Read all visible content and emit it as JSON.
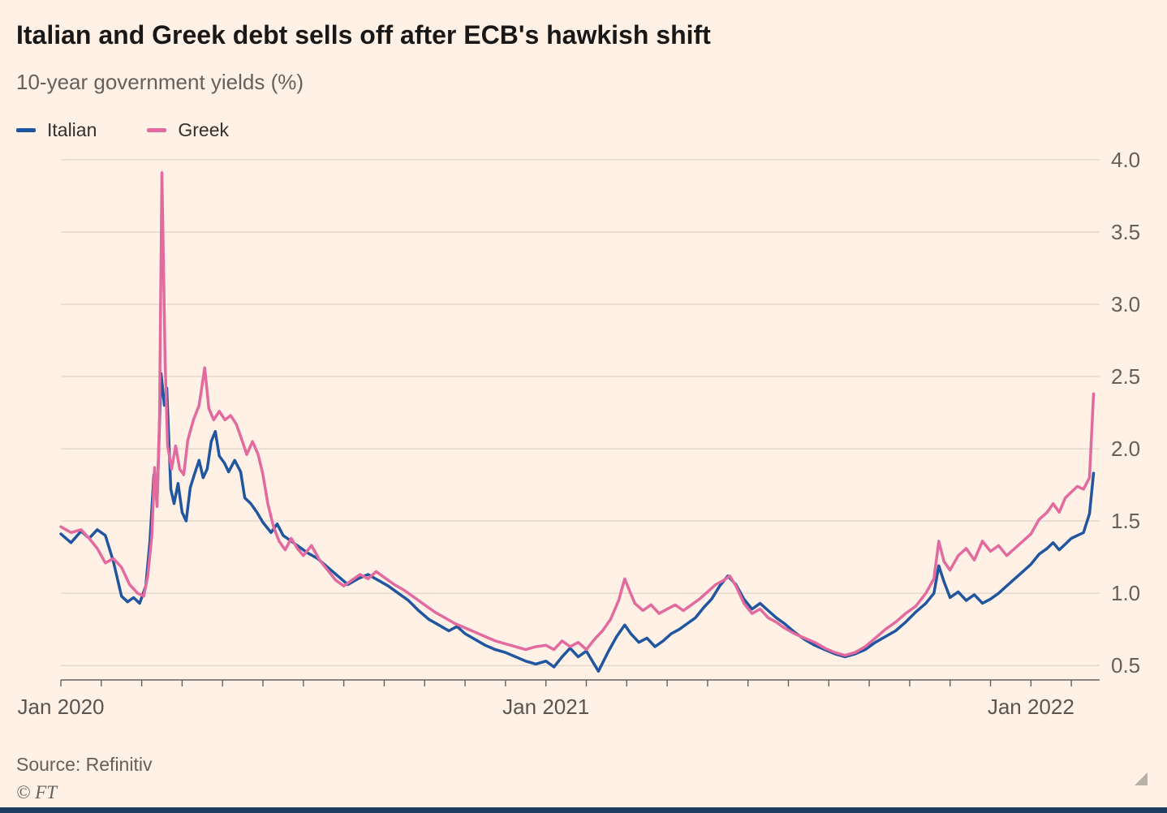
{
  "page": {
    "title": "Italian and Greek debt sells off after ECB's hawkish shift",
    "subtitle": "10-year government yields (%)",
    "source": "Source: Refinitiv",
    "copyright": "© FT"
  },
  "colors": {
    "background": "#FFF1E5",
    "title_text": "#1A1817",
    "muted_text": "#66605C",
    "axis": "#66605C",
    "grid": "#D8CCC0",
    "italian_line": "#20569F",
    "greek_line": "#E26A9F",
    "bottom_bar": "#1E3F5F",
    "corner_handle": "#B9B0A7"
  },
  "chart_data": {
    "type": "line",
    "title": "Italian and Greek debt sells off after ECB's hawkish shift",
    "subtitle": "10-year government yields (%)",
    "xlabel": "",
    "ylabel": "10-year government yield (%)",
    "grid": "horizontal",
    "legend_position": "top-left",
    "x_unit": "months since Jan 2020",
    "x_range": [
      0,
      25.7
    ],
    "y_range": [
      0.4,
      4.05
    ],
    "y_ticks": [
      0.5,
      1.0,
      1.5,
      2.0,
      2.5,
      3.0,
      3.5,
      4.0
    ],
    "x_ticks": [
      {
        "label": "Jan 2020",
        "month": 0
      },
      {
        "label": "Jan 2021",
        "month": 12
      },
      {
        "label": "Jan 2022",
        "month": 24
      }
    ],
    "minor_tick_interval_months": 1,
    "series": [
      {
        "name": "Italian",
        "color": "#20569F",
        "points": [
          [
            0,
            1.41
          ],
          [
            0.25,
            1.35
          ],
          [
            0.5,
            1.43
          ],
          [
            0.7,
            1.38
          ],
          [
            0.9,
            1.44
          ],
          [
            1.1,
            1.4
          ],
          [
            1.3,
            1.22
          ],
          [
            1.5,
            0.98
          ],
          [
            1.65,
            0.94
          ],
          [
            1.8,
            0.97
          ],
          [
            1.95,
            0.93
          ],
          [
            2.1,
            1.05
          ],
          [
            2.2,
            1.35
          ],
          [
            2.3,
            1.82
          ],
          [
            2.38,
            1.62
          ],
          [
            2.48,
            2.52
          ],
          [
            2.56,
            2.3
          ],
          [
            2.62,
            2.42
          ],
          [
            2.72,
            1.72
          ],
          [
            2.8,
            1.62
          ],
          [
            2.9,
            1.76
          ],
          [
            3.0,
            1.56
          ],
          [
            3.1,
            1.5
          ],
          [
            3.2,
            1.73
          ],
          [
            3.3,
            1.82
          ],
          [
            3.42,
            1.92
          ],
          [
            3.52,
            1.8
          ],
          [
            3.62,
            1.86
          ],
          [
            3.72,
            2.05
          ],
          [
            3.82,
            2.12
          ],
          [
            3.92,
            1.95
          ],
          [
            4.05,
            1.9
          ],
          [
            4.15,
            1.84
          ],
          [
            4.3,
            1.92
          ],
          [
            4.45,
            1.84
          ],
          [
            4.55,
            1.66
          ],
          [
            4.7,
            1.62
          ],
          [
            4.85,
            1.56
          ],
          [
            5.0,
            1.49
          ],
          [
            5.2,
            1.42
          ],
          [
            5.35,
            1.48
          ],
          [
            5.5,
            1.4
          ],
          [
            5.7,
            1.36
          ],
          [
            5.9,
            1.32
          ],
          [
            6.1,
            1.28
          ],
          [
            6.35,
            1.24
          ],
          [
            6.6,
            1.18
          ],
          [
            6.85,
            1.12
          ],
          [
            7.1,
            1.06
          ],
          [
            7.35,
            1.1
          ],
          [
            7.6,
            1.13
          ],
          [
            7.85,
            1.09
          ],
          [
            8.1,
            1.05
          ],
          [
            8.35,
            1.0
          ],
          [
            8.6,
            0.95
          ],
          [
            8.85,
            0.88
          ],
          [
            9.1,
            0.82
          ],
          [
            9.35,
            0.78
          ],
          [
            9.6,
            0.74
          ],
          [
            9.8,
            0.77
          ],
          [
            10.0,
            0.72
          ],
          [
            10.25,
            0.68
          ],
          [
            10.5,
            0.64
          ],
          [
            10.75,
            0.61
          ],
          [
            11.0,
            0.59
          ],
          [
            11.25,
            0.56
          ],
          [
            11.5,
            0.53
          ],
          [
            11.75,
            0.51
          ],
          [
            12.0,
            0.53
          ],
          [
            12.2,
            0.49
          ],
          [
            12.4,
            0.56
          ],
          [
            12.6,
            0.62
          ],
          [
            12.8,
            0.56
          ],
          [
            13.0,
            0.6
          ],
          [
            13.15,
            0.53
          ],
          [
            13.3,
            0.46
          ],
          [
            13.55,
            0.6
          ],
          [
            13.75,
            0.7
          ],
          [
            13.95,
            0.78
          ],
          [
            14.1,
            0.72
          ],
          [
            14.3,
            0.66
          ],
          [
            14.5,
            0.69
          ],
          [
            14.7,
            0.63
          ],
          [
            14.9,
            0.67
          ],
          [
            15.1,
            0.72
          ],
          [
            15.3,
            0.75
          ],
          [
            15.5,
            0.79
          ],
          [
            15.7,
            0.83
          ],
          [
            15.9,
            0.9
          ],
          [
            16.1,
            0.96
          ],
          [
            16.3,
            1.05
          ],
          [
            16.5,
            1.12
          ],
          [
            16.7,
            1.06
          ],
          [
            16.9,
            0.96
          ],
          [
            17.1,
            0.89
          ],
          [
            17.3,
            0.93
          ],
          [
            17.5,
            0.88
          ],
          [
            17.7,
            0.83
          ],
          [
            17.9,
            0.79
          ],
          [
            18.15,
            0.73
          ],
          [
            18.4,
            0.68
          ],
          [
            18.65,
            0.64
          ],
          [
            18.9,
            0.61
          ],
          [
            19.15,
            0.58
          ],
          [
            19.4,
            0.56
          ],
          [
            19.65,
            0.58
          ],
          [
            19.9,
            0.61
          ],
          [
            20.15,
            0.66
          ],
          [
            20.4,
            0.7
          ],
          [
            20.65,
            0.74
          ],
          [
            20.9,
            0.8
          ],
          [
            21.15,
            0.87
          ],
          [
            21.4,
            0.93
          ],
          [
            21.6,
            1.0
          ],
          [
            21.72,
            1.19
          ],
          [
            21.85,
            1.08
          ],
          [
            22.0,
            0.97
          ],
          [
            22.2,
            1.01
          ],
          [
            22.4,
            0.95
          ],
          [
            22.6,
            0.99
          ],
          [
            22.8,
            0.93
          ],
          [
            23.0,
            0.96
          ],
          [
            23.2,
            1.0
          ],
          [
            23.4,
            1.05
          ],
          [
            23.6,
            1.1
          ],
          [
            23.8,
            1.15
          ],
          [
            24.0,
            1.2
          ],
          [
            24.2,
            1.27
          ],
          [
            24.4,
            1.31
          ],
          [
            24.55,
            1.35
          ],
          [
            24.7,
            1.3
          ],
          [
            24.85,
            1.34
          ],
          [
            25.0,
            1.38
          ],
          [
            25.15,
            1.4
          ],
          [
            25.3,
            1.42
          ],
          [
            25.45,
            1.55
          ],
          [
            25.55,
            1.83
          ]
        ]
      },
      {
        "name": "Greek",
        "color": "#E26A9F",
        "points": [
          [
            0,
            1.46
          ],
          [
            0.25,
            1.42
          ],
          [
            0.5,
            1.44
          ],
          [
            0.7,
            1.38
          ],
          [
            0.9,
            1.31
          ],
          [
            1.1,
            1.21
          ],
          [
            1.3,
            1.24
          ],
          [
            1.5,
            1.18
          ],
          [
            1.7,
            1.06
          ],
          [
            1.9,
            1.0
          ],
          [
            2.05,
            0.98
          ],
          [
            2.15,
            1.12
          ],
          [
            2.25,
            1.4
          ],
          [
            2.32,
            1.87
          ],
          [
            2.38,
            1.6
          ],
          [
            2.44,
            2.2
          ],
          [
            2.5,
            3.91
          ],
          [
            2.58,
            2.6
          ],
          [
            2.64,
            2.02
          ],
          [
            2.74,
            1.86
          ],
          [
            2.84,
            2.02
          ],
          [
            2.94,
            1.86
          ],
          [
            3.04,
            1.82
          ],
          [
            3.14,
            2.06
          ],
          [
            3.28,
            2.2
          ],
          [
            3.42,
            2.3
          ],
          [
            3.56,
            2.56
          ],
          [
            3.66,
            2.28
          ],
          [
            3.78,
            2.2
          ],
          [
            3.92,
            2.26
          ],
          [
            4.06,
            2.2
          ],
          [
            4.2,
            2.23
          ],
          [
            4.34,
            2.17
          ],
          [
            4.48,
            2.06
          ],
          [
            4.6,
            1.96
          ],
          [
            4.74,
            2.05
          ],
          [
            4.88,
            1.96
          ],
          [
            5.0,
            1.82
          ],
          [
            5.12,
            1.62
          ],
          [
            5.26,
            1.46
          ],
          [
            5.4,
            1.36
          ],
          [
            5.55,
            1.3
          ],
          [
            5.7,
            1.38
          ],
          [
            5.85,
            1.31
          ],
          [
            6.0,
            1.26
          ],
          [
            6.2,
            1.33
          ],
          [
            6.4,
            1.23
          ],
          [
            6.6,
            1.16
          ],
          [
            6.8,
            1.09
          ],
          [
            7.0,
            1.05
          ],
          [
            7.2,
            1.09
          ],
          [
            7.4,
            1.13
          ],
          [
            7.6,
            1.1
          ],
          [
            7.8,
            1.15
          ],
          [
            8.0,
            1.11
          ],
          [
            8.25,
            1.06
          ],
          [
            8.5,
            1.02
          ],
          [
            8.75,
            0.97
          ],
          [
            9.0,
            0.92
          ],
          [
            9.25,
            0.87
          ],
          [
            9.5,
            0.83
          ],
          [
            9.75,
            0.79
          ],
          [
            10.0,
            0.76
          ],
          [
            10.25,
            0.73
          ],
          [
            10.5,
            0.7
          ],
          [
            10.75,
            0.67
          ],
          [
            11.0,
            0.65
          ],
          [
            11.25,
            0.63
          ],
          [
            11.5,
            0.61
          ],
          [
            11.75,
            0.63
          ],
          [
            12.0,
            0.64
          ],
          [
            12.2,
            0.61
          ],
          [
            12.4,
            0.67
          ],
          [
            12.6,
            0.63
          ],
          [
            12.8,
            0.66
          ],
          [
            13.0,
            0.61
          ],
          [
            13.2,
            0.68
          ],
          [
            13.4,
            0.74
          ],
          [
            13.6,
            0.82
          ],
          [
            13.8,
            0.95
          ],
          [
            13.95,
            1.1
          ],
          [
            14.05,
            1.03
          ],
          [
            14.2,
            0.93
          ],
          [
            14.4,
            0.88
          ],
          [
            14.6,
            0.92
          ],
          [
            14.8,
            0.86
          ],
          [
            15.0,
            0.89
          ],
          [
            15.2,
            0.92
          ],
          [
            15.4,
            0.88
          ],
          [
            15.6,
            0.92
          ],
          [
            15.8,
            0.96
          ],
          [
            16.0,
            1.01
          ],
          [
            16.2,
            1.06
          ],
          [
            16.4,
            1.09
          ],
          [
            16.55,
            1.12
          ],
          [
            16.7,
            1.05
          ],
          [
            16.9,
            0.93
          ],
          [
            17.1,
            0.86
          ],
          [
            17.3,
            0.89
          ],
          [
            17.5,
            0.83
          ],
          [
            17.7,
            0.8
          ],
          [
            17.9,
            0.76
          ],
          [
            18.15,
            0.72
          ],
          [
            18.4,
            0.69
          ],
          [
            18.65,
            0.66
          ],
          [
            18.9,
            0.62
          ],
          [
            19.15,
            0.59
          ],
          [
            19.4,
            0.57
          ],
          [
            19.65,
            0.59
          ],
          [
            19.9,
            0.63
          ],
          [
            20.15,
            0.69
          ],
          [
            20.4,
            0.75
          ],
          [
            20.65,
            0.8
          ],
          [
            20.9,
            0.86
          ],
          [
            21.15,
            0.91
          ],
          [
            21.4,
            1.0
          ],
          [
            21.6,
            1.1
          ],
          [
            21.72,
            1.36
          ],
          [
            21.85,
            1.22
          ],
          [
            22.0,
            1.16
          ],
          [
            22.2,
            1.26
          ],
          [
            22.4,
            1.31
          ],
          [
            22.6,
            1.23
          ],
          [
            22.8,
            1.36
          ],
          [
            23.0,
            1.29
          ],
          [
            23.2,
            1.33
          ],
          [
            23.4,
            1.26
          ],
          [
            23.6,
            1.31
          ],
          [
            23.8,
            1.36
          ],
          [
            24.0,
            1.41
          ],
          [
            24.2,
            1.51
          ],
          [
            24.4,
            1.56
          ],
          [
            24.55,
            1.62
          ],
          [
            24.7,
            1.56
          ],
          [
            24.85,
            1.66
          ],
          [
            25.0,
            1.7
          ],
          [
            25.15,
            1.74
          ],
          [
            25.3,
            1.72
          ],
          [
            25.45,
            1.8
          ],
          [
            25.55,
            2.38
          ]
        ]
      }
    ]
  }
}
